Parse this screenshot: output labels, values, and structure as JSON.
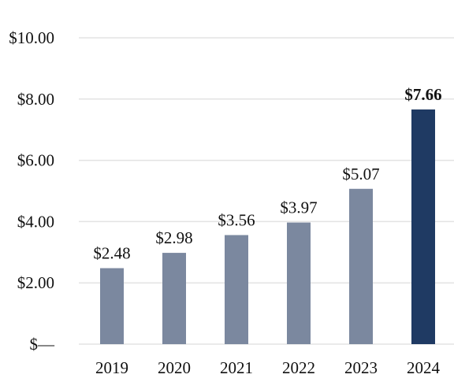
{
  "chart_data": {
    "type": "bar",
    "categories": [
      "2019",
      "2020",
      "2021",
      "2022",
      "2023",
      "2024"
    ],
    "values": [
      2.48,
      2.98,
      3.56,
      3.97,
      5.07,
      7.66
    ],
    "data_labels": [
      "$2.48",
      "$2.98",
      "$3.56",
      "$3.97",
      "$5.07",
      "$7.66"
    ],
    "highlight_index": 5,
    "title": "",
    "xlabel": "",
    "ylabel": "",
    "ylim": [
      0,
      10
    ],
    "y_ticks": [
      0,
      2,
      4,
      6,
      8,
      10
    ],
    "y_tick_labels": [
      "$—",
      "$2.00",
      "$4.00",
      "$6.00",
      "$8.00",
      "$10.00"
    ],
    "grid": true,
    "colors": {
      "bar": "#7b889f",
      "highlight": "#1f3a63"
    }
  }
}
